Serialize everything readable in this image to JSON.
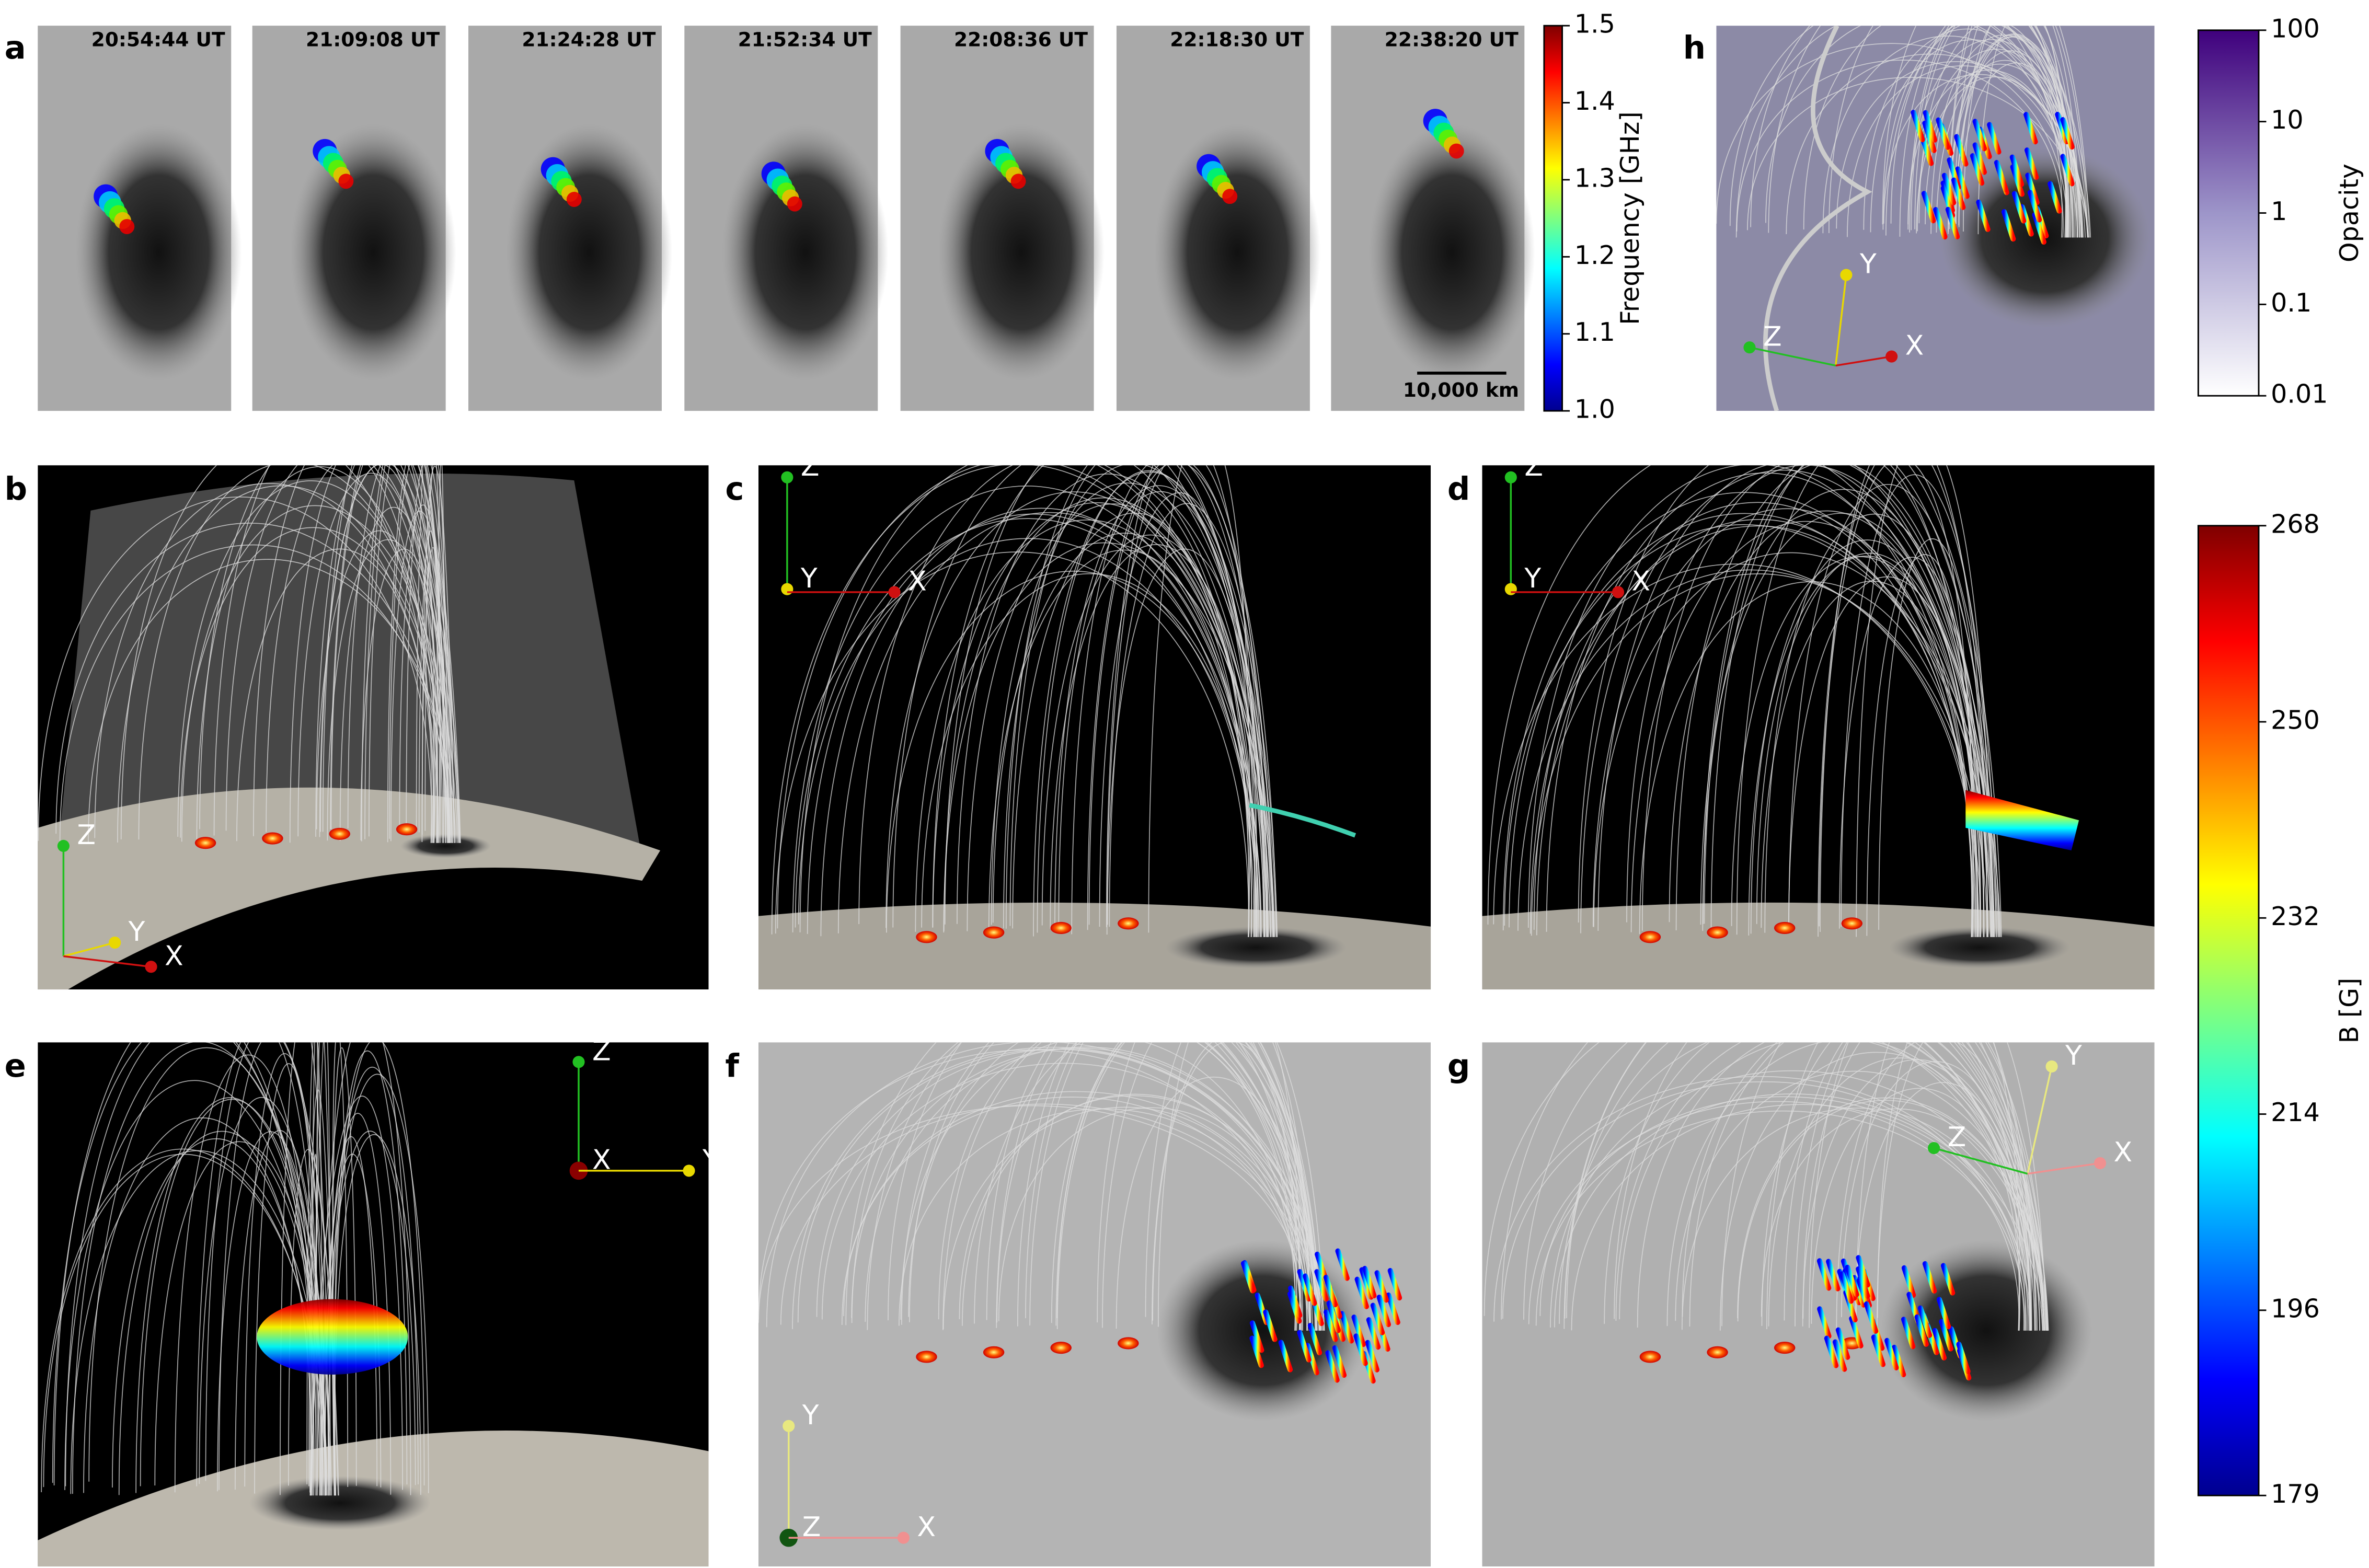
{
  "panel_a": {
    "letter": "a",
    "timestamps": [
      "20:54:44 UT",
      "21:09:08 UT",
      "21:24:28 UT",
      "21:52:34 UT",
      "22:08:36 UT",
      "22:18:30 UT",
      "22:38:20 UT"
    ],
    "scale_bar": "10,000 km"
  },
  "frequency_colorbar": {
    "label": "Frequency [GHz]",
    "lim": [
      1.0,
      1.5
    ],
    "ticks": [
      {
        "value": 1.0,
        "label": "1.0"
      },
      1.1,
      1.2,
      1.3,
      1.4,
      1.5
    ]
  },
  "opacity_colorbar": {
    "label": "Opacity",
    "lim": [
      0.01,
      100
    ],
    "log": true,
    "ticks": [
      0.01,
      0.1,
      1,
      10,
      100
    ]
  },
  "b_colorbar": {
    "label": "B [G]",
    "lim": [
      179,
      268
    ],
    "ticks": [
      179,
      196,
      214,
      232,
      250,
      268
    ]
  },
  "panels": [
    {
      "letter": "h",
      "axes": [
        "Y",
        "Z",
        "X"
      ]
    },
    {
      "letter": "b",
      "axes": [
        "Z",
        "Y",
        "X"
      ]
    },
    {
      "letter": "c",
      "axes": [
        "Z",
        "Y",
        "X"
      ]
    },
    {
      "letter": "d",
      "axes": [
        "Z",
        "Y",
        "X"
      ]
    },
    {
      "letter": "e",
      "axes": [
        "Z",
        "X",
        "Y"
      ]
    },
    {
      "letter": "f",
      "axes": [
        "Y",
        "Z",
        "X"
      ]
    },
    {
      "letter": "g",
      "axes": [
        "Y",
        "Z",
        "X"
      ]
    }
  ]
}
